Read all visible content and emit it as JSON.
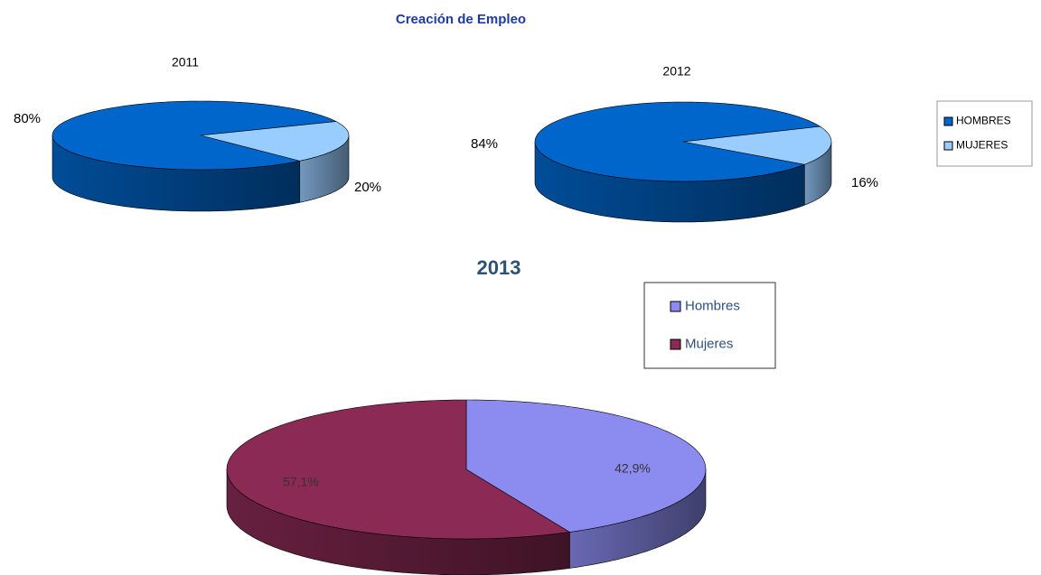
{
  "title": "Creación de Empleo",
  "chart_data": [
    {
      "type": "pie",
      "title": "2011",
      "values": [
        80,
        20
      ],
      "value_labels": [
        "80%",
        "20%"
      ],
      "colors": [
        "#0066cc",
        "#99ccff"
      ]
    },
    {
      "type": "pie",
      "title": "2012",
      "categories": [
        "HOMBRES",
        "MUJERES"
      ],
      "values": [
        84,
        16
      ],
      "value_labels": [
        "84%",
        "16%"
      ],
      "colors": [
        "#0066cc",
        "#99ccff"
      ],
      "legend": "right"
    },
    {
      "type": "pie",
      "title": "2013",
      "categories": [
        "Hombres",
        "Mujeres"
      ],
      "values": [
        42.9,
        57.1
      ],
      "value_labels": [
        "42,9%",
        "57,1%"
      ],
      "colors": [
        "#8c8cf0",
        "#8b2a55"
      ],
      "legend": "top-right"
    }
  ]
}
